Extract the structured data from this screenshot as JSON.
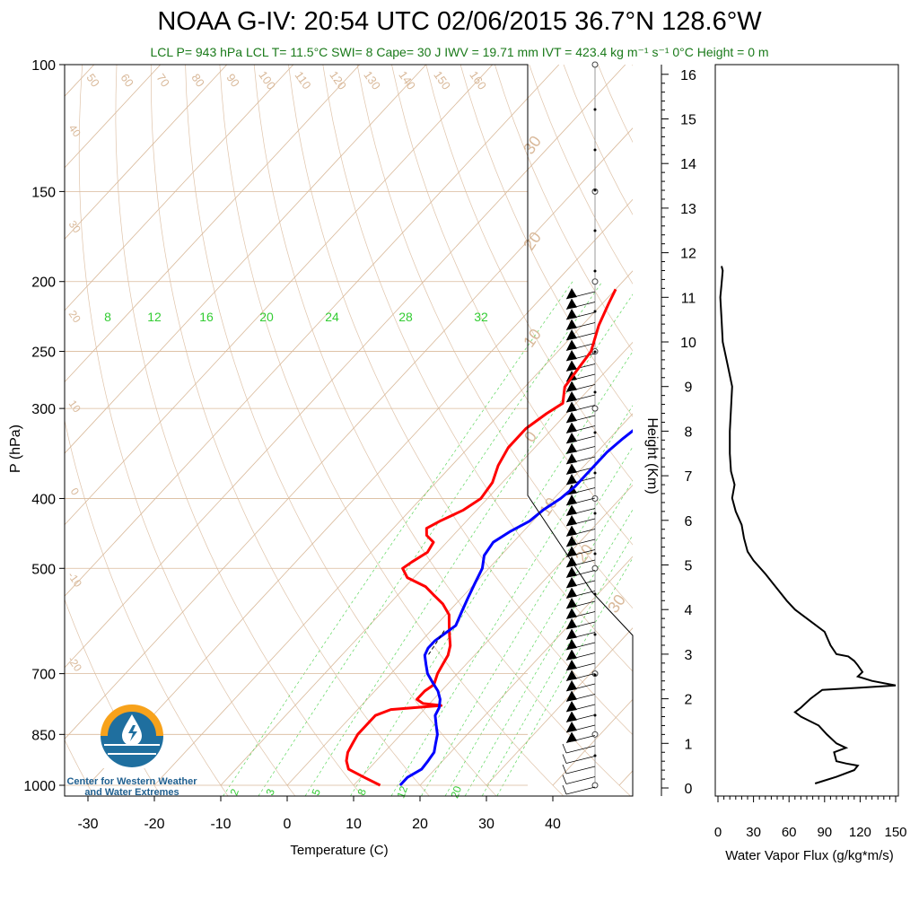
{
  "header": {
    "title": "NOAA G-IV: 20:54 UTC 02/06/2015  36.7°N 128.6°W",
    "subtitle": "LCL P= 943 hPa  LCL T= 11.5°C  SWI= 8  Cape= 30 J  IWV = 19.71 mm  IVT = 423.4 kg m⁻¹ s⁻¹  0°C Height = 0 m"
  },
  "logo": {
    "line1": "Center for Western Weather",
    "line2": "and Water Extremes",
    "icon": "water-drop-sun-logo-icon"
  },
  "colors": {
    "temperature": "#ff0000",
    "dewpoint": "#0000ff",
    "isotherm": "#d9b99a",
    "mixing_ratio": "#33cc33",
    "flux": "#000000",
    "subtitle": "#1a7a1a"
  },
  "chart_data": [
    {
      "type": "line",
      "subtype": "skew-t",
      "xlabel": "Temperature (C)",
      "ylabel": "P (hPa)",
      "xlim": [
        -35,
        50
      ],
      "ylim": [
        1000,
        100
      ],
      "x_ticks": [
        -30,
        -20,
        -10,
        0,
        10,
        20,
        30,
        40
      ],
      "y_ticks": [
        100,
        150,
        200,
        250,
        300,
        400,
        500,
        700,
        850,
        1000
      ],
      "height_ticks": [
        0,
        1,
        2,
        3,
        4,
        5,
        6,
        7,
        8,
        9,
        10,
        11,
        12,
        13,
        14,
        15,
        16
      ],
      "height_label": "Height (Km)",
      "mixing_ratio_labels": [
        "8",
        "12",
        "16",
        "20",
        "24",
        "28",
        "32"
      ],
      "mixing_ratio_bottom_labels": [
        "2",
        "3",
        "5",
        "8",
        "12",
        "20"
      ],
      "theta_labels": [
        "50",
        "60",
        "70",
        "80",
        "90",
        "100",
        "110",
        "120",
        "130",
        "140",
        "150",
        "160"
      ],
      "isotherm_labels": [
        "40",
        "30",
        "20",
        "10",
        "0",
        "-10",
        "-20"
      ],
      "wind_speed_labels": [
        "30",
        "20",
        "10",
        "0",
        "10",
        "20",
        "30"
      ],
      "series": [
        {
          "name": "",
          "key": "temperature",
          "points": [
            [
              1000,
              14.0
            ],
            [
              975,
              10.5
            ],
            [
              950,
              7
            ],
            [
              925,
              5.5
            ],
            [
              900,
              4.5
            ],
            [
              875,
              4
            ],
            [
              850,
              3.5
            ],
            [
              825,
              3.5
            ],
            [
              800,
              3.5
            ],
            [
              785,
              5
            ],
            [
              775,
              12
            ],
            [
              770,
              9
            ],
            [
              760,
              7.5
            ],
            [
              740,
              7.5
            ],
            [
              725,
              8
            ],
            [
              700,
              7
            ],
            [
              680,
              6.5
            ],
            [
              660,
              6
            ],
            [
              640,
              5
            ],
            [
              620,
              3.5
            ],
            [
              600,
              2
            ],
            [
              580,
              0.5
            ],
            [
              560,
              -2
            ],
            [
              545,
              -4.5
            ],
            [
              530,
              -7
            ],
            [
              515,
              -11
            ],
            [
              500,
              -13
            ],
            [
              490,
              -12.5
            ],
            [
              475,
              -11.5
            ],
            [
              460,
              -12
            ],
            [
              450,
              -14
            ],
            [
              440,
              -15
            ],
            [
              430,
              -14
            ],
            [
              415,
              -12
            ],
            [
              400,
              -11
            ],
            [
              380,
              -11.5
            ],
            [
              360,
              -13
            ],
            [
              340,
              -14
            ],
            [
              320,
              -14
            ],
            [
              305,
              -13
            ],
            [
              295,
              -12
            ],
            [
              280,
              -14
            ],
            [
              265,
              -14.5
            ],
            [
              250,
              -15
            ],
            [
              230,
              -17.5
            ],
            [
              215,
              -19
            ],
            [
              205,
              -20
            ]
          ]
        },
        {
          "name": "",
          "key": "dewpoint",
          "points": [
            [
              1000,
              17
            ],
            [
              975,
              17
            ],
            [
              950,
              18
            ],
            [
              925,
              17.8
            ],
            [
              900,
              17.5
            ],
            [
              875,
              16.5
            ],
            [
              850,
              15.5
            ],
            [
              825,
              14
            ],
            [
              800,
              12.5
            ],
            [
              780,
              12
            ],
            [
              760,
              11
            ],
            [
              740,
              9.5
            ],
            [
              720,
              7.5
            ],
            [
              700,
              5.5
            ],
            [
              680,
              4
            ],
            [
              660,
              2.5
            ],
            [
              645,
              2
            ],
            [
              630,
              2
            ],
            [
              615,
              2.5
            ],
            [
              600,
              3
            ],
            [
              575,
              2
            ],
            [
              550,
              1
            ],
            [
              525,
              0
            ],
            [
              500,
              -1
            ],
            [
              480,
              -2.5
            ],
            [
              460,
              -3
            ],
            [
              445,
              -2
            ],
            [
              430,
              -0.5
            ],
            [
              415,
              0
            ],
            [
              400,
              1
            ],
            [
              385,
              1.5
            ],
            [
              365,
              1.5
            ],
            [
              345,
              1.5
            ],
            [
              330,
              2
            ],
            [
              310,
              3
            ],
            [
              300,
              3
            ],
            [
              285,
              2
            ],
            [
              270,
              1.5
            ],
            [
              255,
              1.5
            ],
            [
              240,
              0.5
            ],
            [
              225,
              -0.5
            ],
            [
              210,
              -2
            ],
            [
              205,
              -2
            ]
          ]
        }
      ]
    },
    {
      "type": "line",
      "xlabel": "Water Vapor Flux (g/kg*m/s)",
      "ylabel": "",
      "xlim": [
        0,
        150
      ],
      "ylim": [
        0,
        16.5
      ],
      "x_ticks": [
        0,
        30,
        60,
        90,
        120,
        150
      ],
      "series": [
        {
          "name": "",
          "points": [
            [
              82,
              0.1
            ],
            [
              100,
              0.25
            ],
            [
              115,
              0.4
            ],
            [
              118,
              0.5
            ],
            [
              108,
              0.55
            ],
            [
              100,
              0.6
            ],
            [
              98,
              0.8
            ],
            [
              108,
              0.9
            ],
            [
              100,
              1.0
            ],
            [
              92,
              1.2
            ],
            [
              85,
              1.4
            ],
            [
              70,
              1.6
            ],
            [
              65,
              1.7
            ],
            [
              70,
              1.8
            ],
            [
              78,
              2.0
            ],
            [
              88,
              2.2
            ],
            [
              120,
              2.25
            ],
            [
              150,
              2.3
            ],
            [
              130,
              2.4
            ],
            [
              118,
              2.5
            ],
            [
              122,
              2.6
            ],
            [
              118,
              2.75
            ],
            [
              115,
              2.85
            ],
            [
              110,
              2.95
            ],
            [
              100,
              3.0
            ],
            [
              95,
              3.2
            ],
            [
              90,
              3.5
            ],
            [
              80,
              3.7
            ],
            [
              70,
              3.9
            ],
            [
              65,
              4.0
            ],
            [
              58,
              4.2
            ],
            [
              52,
              4.4
            ],
            [
              46,
              4.6
            ],
            [
              40,
              4.8
            ],
            [
              30,
              5.1
            ],
            [
              25,
              5.3
            ],
            [
              22,
              5.6
            ],
            [
              20,
              5.9
            ],
            [
              15,
              6.2
            ],
            [
              12,
              6.5
            ],
            [
              14,
              6.8
            ],
            [
              11,
              7.1
            ],
            [
              10,
              7.5
            ],
            [
              10,
              8.0
            ],
            [
              11,
              8.5
            ],
            [
              12,
              9.0
            ],
            [
              8,
              9.5
            ],
            [
              4,
              10.0
            ],
            [
              3,
              10.5
            ],
            [
              2,
              11.0
            ],
            [
              3,
              11.3
            ],
            [
              4,
              11.6
            ],
            [
              3,
              11.7
            ]
          ]
        }
      ]
    }
  ]
}
